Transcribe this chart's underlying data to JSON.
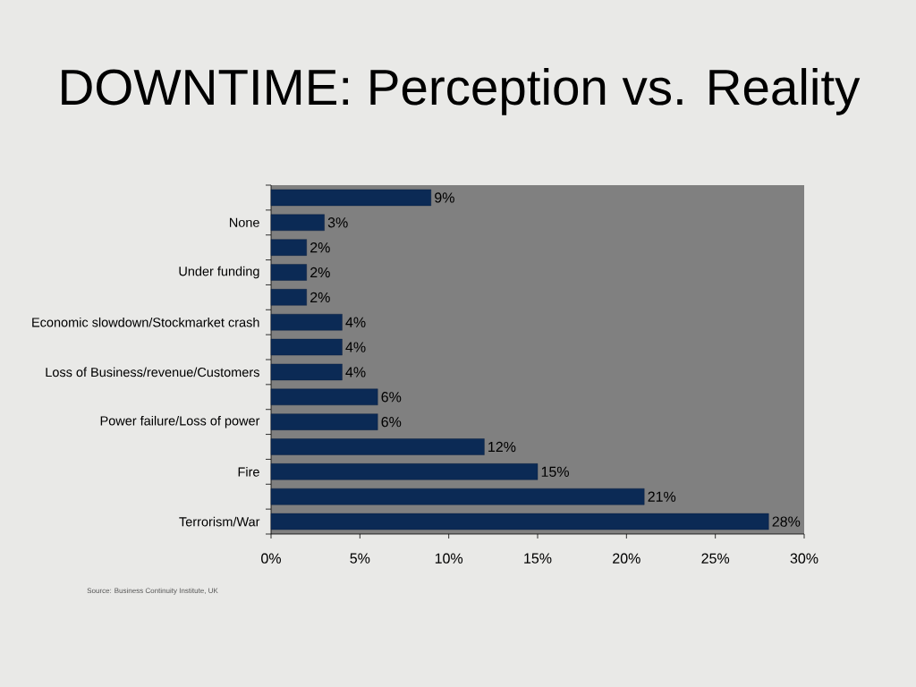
{
  "chart_data": {
    "type": "bar",
    "orientation": "horizontal",
    "title": "DOWNTIME: Perception vs. Reality",
    "categories": [
      null,
      "None",
      null,
      "Under funding",
      null,
      "Economic slowdown/Stockmarket crash",
      null,
      "Loss of Business/revenue/Customers",
      null,
      "Power failure/Loss of power",
      null,
      "Fire",
      null,
      "Terrorism/War"
    ],
    "values": [
      9,
      3,
      2,
      2,
      2,
      4,
      4,
      4,
      6,
      6,
      12,
      15,
      21,
      28
    ],
    "value_labels": [
      "9%",
      "3%",
      "2%",
      "2%",
      "2%",
      "4%",
      "4%",
      "4%",
      "6%",
      "6%",
      "12%",
      "15%",
      "21%",
      "28%"
    ],
    "color": "#0b2a55",
    "xlim": [
      0,
      30
    ],
    "xticks": [
      {
        "value": 0,
        "label": "0%"
      },
      {
        "value": 5,
        "label": "5%"
      },
      {
        "value": 10,
        "label": "10%"
      },
      {
        "value": 15,
        "label": "15%"
      },
      {
        "value": 20,
        "label": "20%"
      },
      {
        "value": 25,
        "label": "25%"
      },
      {
        "value": 30,
        "label": "30%"
      }
    ],
    "annotations": [
      "Source: Business Continuity Institute, UK"
    ]
  }
}
